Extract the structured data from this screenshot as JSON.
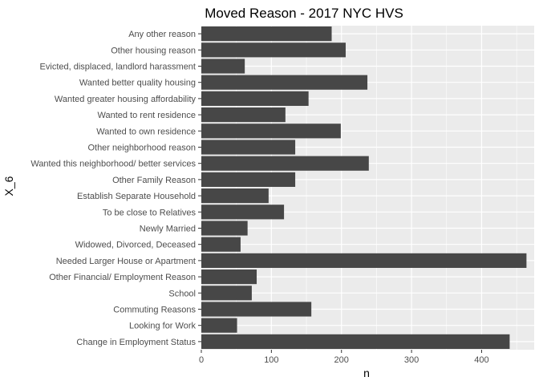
{
  "chart_data": {
    "type": "bar",
    "orientation": "horizontal",
    "title": "Moved Reason - 2017 NYC HVS",
    "xlabel": "n",
    "ylabel": "X_6",
    "xlim": [
      0,
      475
    ],
    "xticks": [
      0,
      100,
      200,
      300,
      400
    ],
    "grid": true,
    "bar_color": "#474747",
    "panel_color": "#ebebeb",
    "categories": [
      "Any other reason",
      "Other housing reason",
      "Evicted, displaced, landlord harassment",
      "Wanted better quality housing",
      "Wanted greater housing affordability",
      "Wanted to rent residence",
      "Wanted to own residence",
      "Other neighborhood reason",
      "Wanted this neighborhood/ better services",
      "Other Family Reason",
      "Establish Separate Household",
      "To be close to Relatives",
      "Newly Married",
      "Widowed, Divorced, Deceased",
      "Needed Larger House or Apartment",
      "Other Financial/ Employment Reason",
      "School",
      "Commuting Reasons",
      "Looking for Work",
      "Change in Employment Status"
    ],
    "values": [
      186,
      206,
      62,
      237,
      153,
      120,
      199,
      134,
      239,
      134,
      96,
      118,
      66,
      56,
      464,
      79,
      72,
      157,
      51,
      440
    ]
  }
}
